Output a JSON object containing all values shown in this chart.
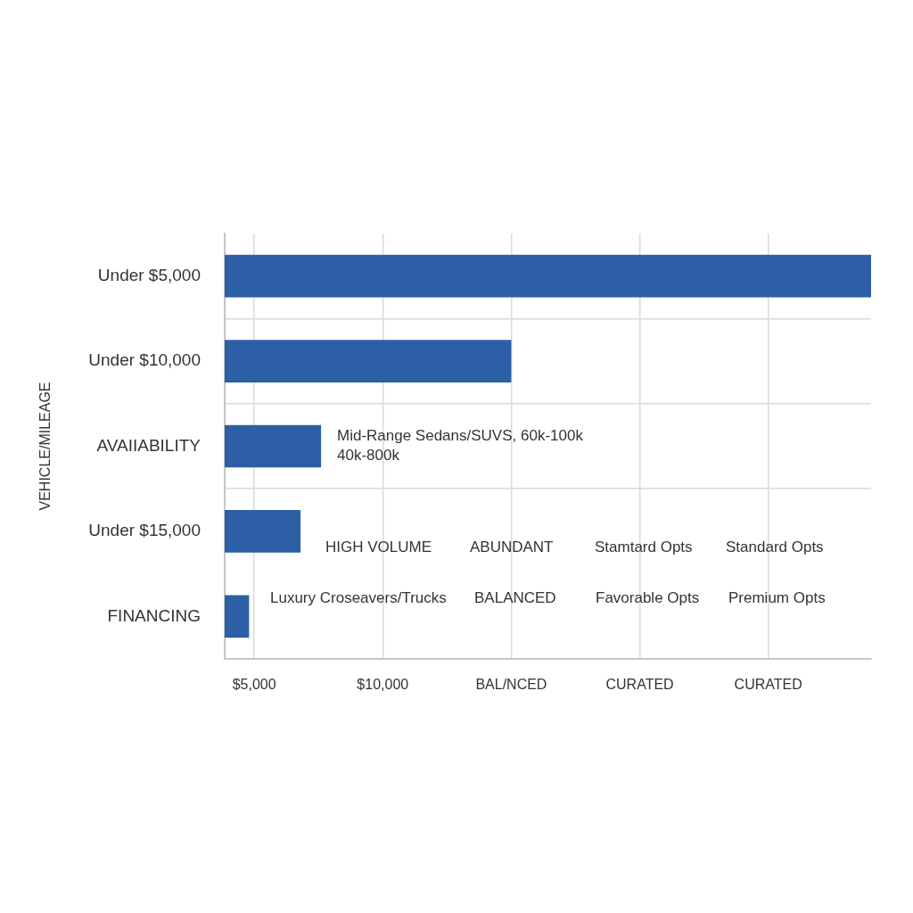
{
  "chart_data": {
    "type": "bar",
    "orientation": "horizontal",
    "ylabel": "VEHICLE/MILEAGE",
    "categories": [
      "Under $5,000",
      "Under $10,000",
      "AVAIIABILITY",
      "Under $15,000",
      "FINANCING"
    ],
    "values": [
      29000,
      15000,
      7600,
      6800,
      4800
    ],
    "color": "#2c5fa5",
    "xlim": [
      3850,
      29000
    ],
    "xticks": [
      {
        "value": 5000,
        "label": "$5,000"
      },
      {
        "value": 10000,
        "label": "$10,000"
      },
      {
        "value": 15000,
        "label": "BAL/NCED"
      },
      {
        "value": 20000,
        "label": "CURATED"
      },
      {
        "value": 25000,
        "label": "CURATED"
      }
    ],
    "grid": true,
    "annotations": [
      "Mid-Range Sedans/SUVS, 60k-100k\n40k-800k",
      "HIGH VOLUME",
      "ABUNDANT",
      "Stamtard Opts",
      "Standard Opts",
      "Luxury Croseavers/Trucks",
      "BALANCED",
      "Favorable Opts",
      "Premium Opts"
    ]
  }
}
